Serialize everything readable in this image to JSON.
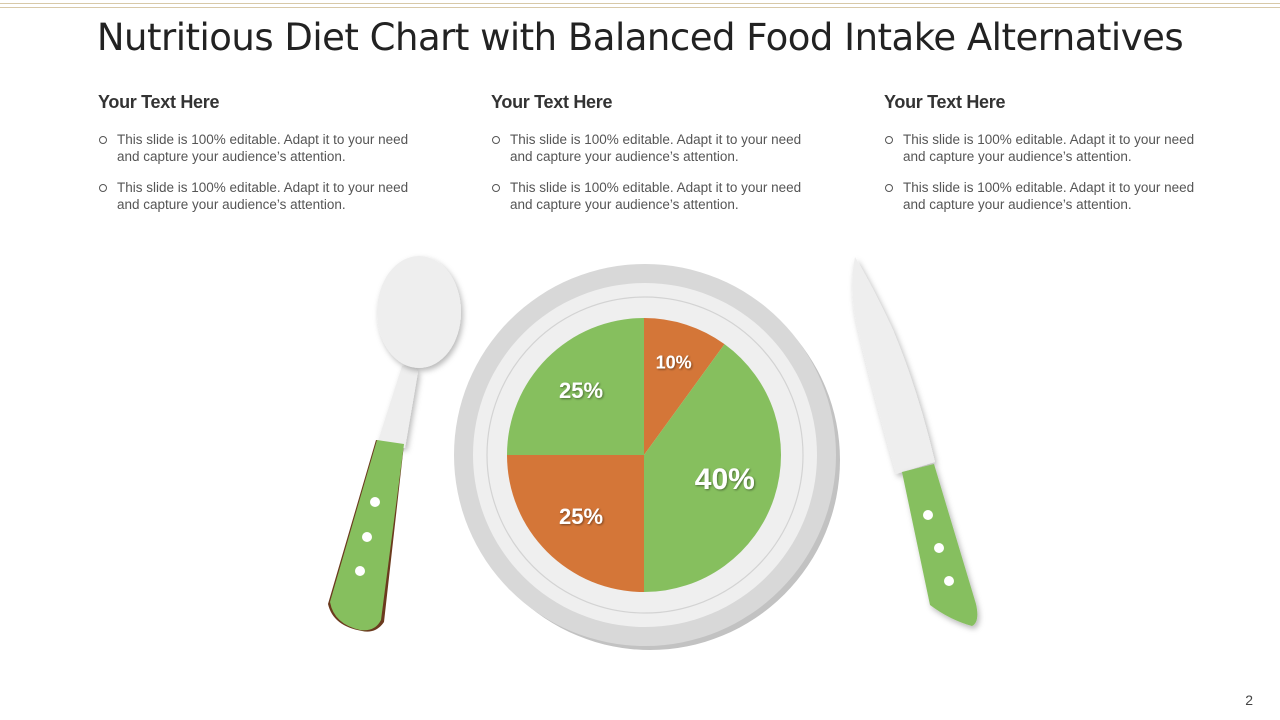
{
  "slide": {
    "title": "Nutritious Diet Chart with Balanced Food Intake Alternatives",
    "page_number": "2"
  },
  "columns": [
    {
      "heading": "Your Text Here",
      "bullets": [
        "This slide is 100% editable. Adapt it to your need and capture your audience’s attention.",
        "This slide is 100% editable. Adapt it to your need and capture your audience’s attention."
      ]
    },
    {
      "heading": "Your Text Here",
      "bullets": [
        "This slide is 100% editable. Adapt it to your need and capture your audience’s attention.",
        "This slide is 100% editable. Adapt it to your need and capture your audience’s attention."
      ]
    },
    {
      "heading": "Your Text Here",
      "bullets": [
        "This slide is 100% editable. Adapt it to your need and capture your audience’s attention.",
        "This slide is 100% editable. Adapt it to your need and capture your audience’s attention."
      ]
    }
  ],
  "colors": {
    "green": "#86bf5e",
    "orange": "#d47638",
    "plate_rim": "#d6d6d6",
    "plate_inner": "#efefef",
    "utensil_silver": "#eeeeee"
  },
  "chart_data": {
    "type": "pie",
    "title": "",
    "start_angle_deg": 0,
    "direction": "clockwise",
    "slices": [
      {
        "label": "10%",
        "value": 10,
        "color": "#d47638"
      },
      {
        "label": "40%",
        "value": 40,
        "color": "#86bf5e"
      },
      {
        "label": "25%",
        "value": 25,
        "color": "#d47638"
      },
      {
        "label": "25%",
        "value": 25,
        "color": "#86bf5e"
      }
    ]
  }
}
